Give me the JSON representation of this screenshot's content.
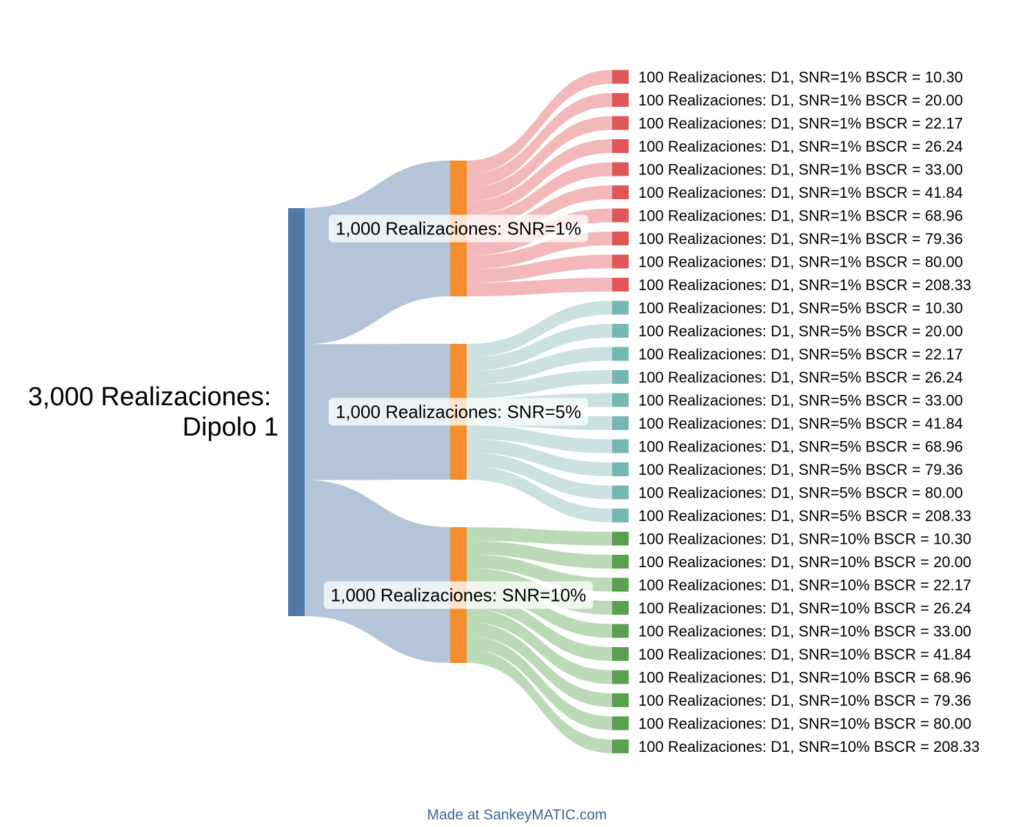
{
  "root": {
    "label_line1": "3,000 Realizaciones:",
    "label_line2": "Dipolo 1",
    "color": "#5078a8"
  },
  "groups": [
    {
      "label": "1,000 Realizaciones: SNR=1%",
      "node_color": "#f28e2b",
      "leaf_color": "#e05759",
      "link_color": "#f2b0b2",
      "leaves": [
        "100 Realizaciones: D1, SNR=1% BSCR = 10.30",
        "100 Realizaciones: D1, SNR=1% BSCR = 20.00",
        "100 Realizaciones: D1, SNR=1% BSCR = 22.17",
        "100 Realizaciones: D1, SNR=1% BSCR = 26.24",
        "100 Realizaciones: D1, SNR=1% BSCR = 33.00",
        "100 Realizaciones: D1, SNR=1% BSCR = 41.84",
        "100 Realizaciones: D1, SNR=1% BSCR = 68.96",
        "100 Realizaciones: D1, SNR=1% BSCR = 79.36",
        "100 Realizaciones: D1, SNR=1% BSCR = 80.00",
        "100 Realizaciones: D1, SNR=1% BSCR = 208.33"
      ]
    },
    {
      "label": "1,000 Realizaciones: SNR=5%",
      "node_color": "#f28e2b",
      "leaf_color": "#76b7b2",
      "link_color": "#c5dfde",
      "leaves": [
        "100 Realizaciones: D1, SNR=5% BSCR = 10.30",
        "100 Realizaciones: D1, SNR=5% BSCR = 20.00",
        "100 Realizaciones: D1, SNR=5% BSCR = 22.17",
        "100 Realizaciones: D1, SNR=5% BSCR = 26.24",
        "100 Realizaciones: D1, SNR=5% BSCR = 33.00",
        "100 Realizaciones: D1, SNR=5% BSCR = 41.84",
        "100 Realizaciones: D1, SNR=5% BSCR = 68.96",
        "100 Realizaciones: D1, SNR=5% BSCR = 79.36",
        "100 Realizaciones: D1, SNR=5% BSCR = 80.00",
        "100 Realizaciones: D1, SNR=5% BSCR = 208.33"
      ]
    },
    {
      "label": "1,000 Realizaciones: SNR=10%",
      "node_color": "#f28e2b",
      "leaf_color": "#59a14f",
      "link_color": "#b5d6af",
      "leaves": [
        "100 Realizaciones: D1, SNR=10% BSCR = 10.30",
        "100 Realizaciones: D1, SNR=10% BSCR = 20.00",
        "100 Realizaciones: D1, SNR=10% BSCR = 22.17",
        "100 Realizaciones: D1, SNR=10% BSCR = 26.24",
        "100 Realizaciones: D1, SNR=10% BSCR = 33.00",
        "100 Realizaciones: D1, SNR=10% BSCR = 41.84",
        "100 Realizaciones: D1, SNR=10% BSCR = 68.96",
        "100 Realizaciones: D1, SNR=10% BSCR = 79.36",
        "100 Realizaciones: D1, SNR=10% BSCR = 80.00",
        "100 Realizaciones: D1, SNR=10% BSCR = 208.33"
      ]
    }
  ],
  "root_link_color": "#b0c2d8",
  "footer": {
    "credit": "Made at SankeyMATIC.com"
  }
}
